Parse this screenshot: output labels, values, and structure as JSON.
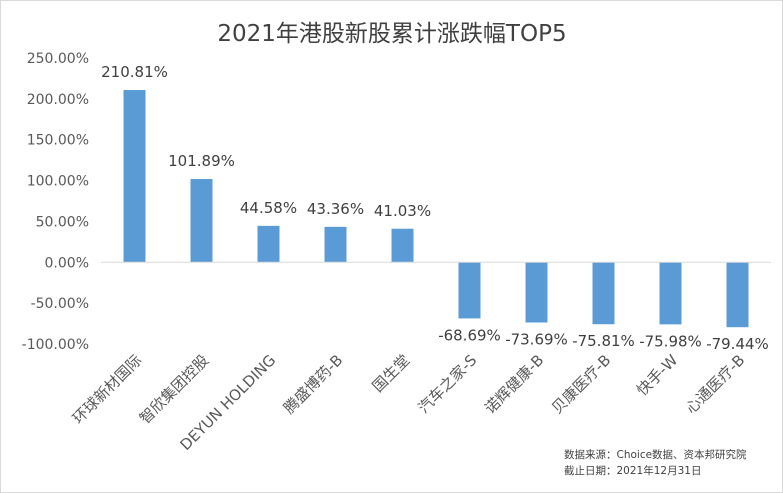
{
  "chart_data": {
    "type": "bar",
    "title": "2021年港股新股累计涨跌幅TOP5",
    "categories": [
      "环球新材国际",
      "智欣集团控股",
      "DEYUN HOLDING",
      "腾盛博药-B",
      "国生堂",
      "汽车之家-S",
      "诺辉健康-B",
      "贝康医疗-B",
      "快手-W",
      "心通医疗-B"
    ],
    "values": [
      210.81,
      101.89,
      44.58,
      43.36,
      41.03,
      -68.69,
      -73.69,
      -75.81,
      -75.98,
      -79.44
    ],
    "data_labels": [
      "210.81%",
      "101.89%",
      "44.58%",
      "43.36%",
      "41.03%",
      "-68.69%",
      "-73.69%",
      "-75.81%",
      "-75.98%",
      "-79.44%"
    ],
    "y_ticks": [
      250,
      200,
      150,
      100,
      50,
      0,
      -50,
      -100
    ],
    "y_tick_labels": [
      "250.00%",
      "200.00%",
      "150.00%",
      "100.00%",
      "50.00%",
      "0.00%",
      "-50.00%",
      "-100.00%"
    ],
    "ylim": [
      -100,
      250
    ],
    "xlabel": "",
    "ylabel": "",
    "grid": false,
    "legend": "none",
    "bar_color": "#5b9bd5",
    "source_lines": [
      "数据来源：Choice数据、资本邦研究院",
      "截止日期：2021年12月31日"
    ]
  }
}
